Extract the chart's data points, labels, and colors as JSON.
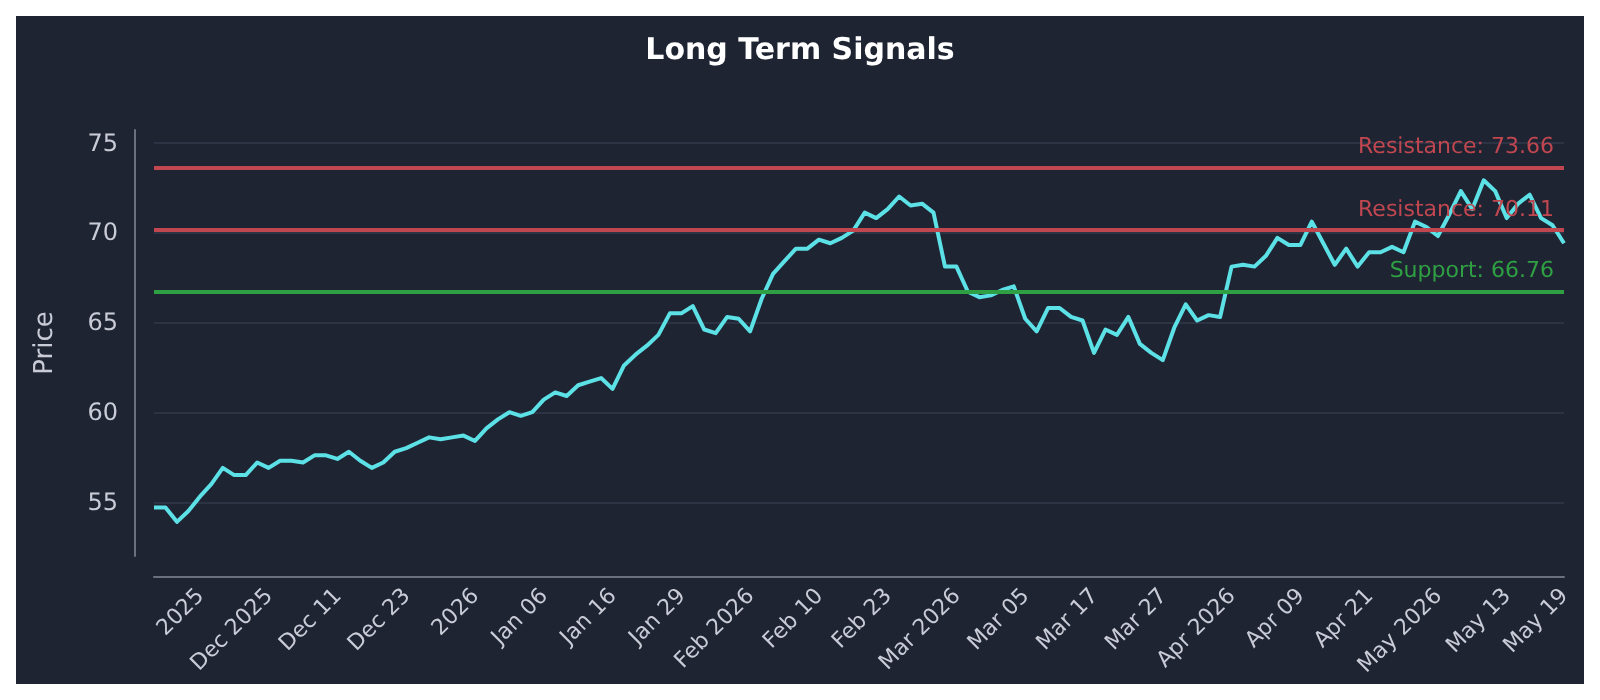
{
  "chart_data": {
    "type": "line",
    "title": "Long Term Signals",
    "ylabel": "Price",
    "categories": [
      null,
      null,
      null,
      null,
      "2025",
      null,
      null,
      null,
      null,
      null,
      "Dec 2025",
      null,
      null,
      null,
      null,
      null,
      "Dec 11",
      null,
      null,
      null,
      null,
      null,
      "Dec 23",
      null,
      null,
      null,
      null,
      null,
      "2026",
      null,
      null,
      null,
      null,
      null,
      "Jan 06",
      null,
      null,
      null,
      null,
      null,
      "Jan 16",
      null,
      null,
      null,
      null,
      null,
      "Jan 29",
      null,
      null,
      null,
      null,
      null,
      "Feb 2026",
      null,
      null,
      null,
      null,
      null,
      "Feb 10",
      null,
      null,
      null,
      null,
      null,
      "Feb 23",
      null,
      null,
      null,
      null,
      null,
      "Mar 2026",
      null,
      null,
      null,
      null,
      null,
      "Mar 05",
      null,
      null,
      null,
      null,
      null,
      "Mar 17",
      null,
      null,
      null,
      null,
      null,
      "Mar 27",
      null,
      null,
      null,
      null,
      null,
      "Apr 2026",
      null,
      null,
      null,
      null,
      null,
      "Apr 09",
      null,
      null,
      null,
      null,
      null,
      "Apr 21",
      null,
      null,
      null,
      null,
      null,
      "May 2026",
      null,
      null,
      null,
      null,
      null,
      "May 13",
      null,
      null,
      null,
      null,
      "May 19"
    ],
    "series": [
      {
        "color": "#5ce1e6",
        "values": [
          54.7,
          54.7,
          53.9,
          54.5,
          55.3,
          56.0,
          56.9,
          56.5,
          56.5,
          57.2,
          56.9,
          57.3,
          57.3,
          57.2,
          57.6,
          57.6,
          57.4,
          57.8,
          57.3,
          56.9,
          57.2,
          57.8,
          58.0,
          58.3,
          58.6,
          58.5,
          58.6,
          58.7,
          58.4,
          59.1,
          59.6,
          60.0,
          59.8,
          60.0,
          60.7,
          61.1,
          60.9,
          61.5,
          61.7,
          61.9,
          61.3,
          62.6,
          63.2,
          63.7,
          64.3,
          65.5,
          65.5,
          65.9,
          64.6,
          64.4,
          65.3,
          65.2,
          64.5,
          66.3,
          67.7,
          68.4,
          69.1,
          69.1,
          69.6,
          69.4,
          69.7,
          70.1,
          71.1,
          70.8,
          71.3,
          72.0,
          71.5,
          71.6,
          71.1,
          68.1,
          68.1,
          66.7,
          66.4,
          66.5,
          66.8,
          67.0,
          65.2,
          64.5,
          65.8,
          65.8,
          65.3,
          65.1,
          63.3,
          64.6,
          64.3,
          65.3,
          63.8,
          63.3,
          62.9,
          64.7,
          66.0,
          65.1,
          65.4,
          65.3,
          68.1,
          68.2,
          68.1,
          68.7,
          69.7,
          69.3,
          69.3,
          70.6,
          69.4,
          68.2,
          69.1,
          68.1,
          68.9,
          68.9,
          69.2,
          68.9,
          70.6,
          70.3,
          69.8,
          71.0,
          72.3,
          71.3,
          72.9,
          72.3,
          70.8,
          71.6,
          72.1,
          70.8,
          70.4,
          69.4
        ]
      }
    ],
    "ylim": [
      52,
      75.7
    ],
    "yticks": [
      55,
      60,
      65,
      70,
      75
    ],
    "grid": "y",
    "marker": "none",
    "line_style": "solid",
    "ref_lines": [
      {
        "axis": "y",
        "value": 73.66,
        "label": "Resistance: 73.66",
        "color": "#c0474f"
      },
      {
        "axis": "y",
        "value": 70.11,
        "label": "Resistance: 70.11",
        "color": "#c0474f"
      },
      {
        "axis": "y",
        "value": 66.76,
        "label": "Support: 66.76",
        "color": "#2ea043"
      }
    ]
  }
}
